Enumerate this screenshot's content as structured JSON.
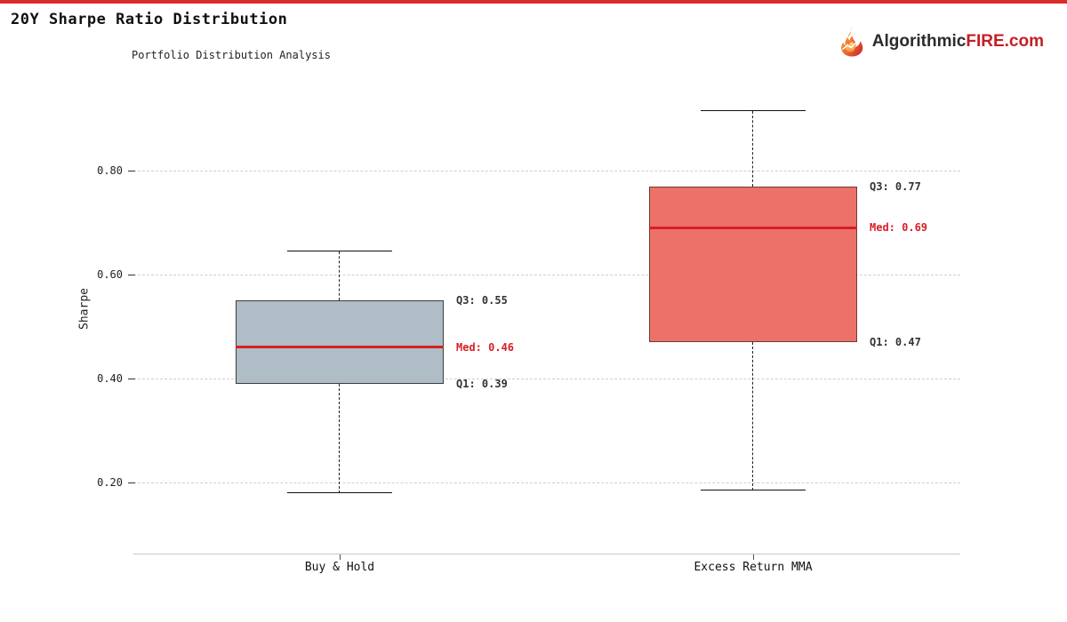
{
  "page": {
    "title": "20Y Sharpe Ratio Distribution",
    "accent_color": "#d92b2b"
  },
  "logo": {
    "name": "AlgorithmicFIRE.com",
    "text_dark": "Algorithmic",
    "text_red": "FIRE",
    "text_suffix": ".com",
    "dark_color": "#2b2b2b",
    "red_color": "#c41e25"
  },
  "chart_data": {
    "type": "box",
    "title": "Portfolio Distribution Analysis",
    "ylabel": "Sharpe",
    "xlabel": "",
    "grid": "horizontal dashed",
    "legend": "none",
    "ylim": [
      0.06,
      0.97
    ],
    "yticks": [
      0.8,
      0.6,
      0.4,
      0.2
    ],
    "ytick_labels": [
      "0.80",
      "0.60",
      "0.40",
      "0.20"
    ],
    "median_color": "#d81f26",
    "categories": [
      "Buy & Hold",
      "Excess Return MMA"
    ],
    "series": [
      {
        "name": "Buy & Hold",
        "whisker_low": 0.18,
        "q1": 0.39,
        "median": 0.46,
        "q3": 0.55,
        "whisker_high": 0.645,
        "box_color": "#aebdc6",
        "edge_color": "#3d3d3d",
        "labels": {
          "q3": "Q3: 0.55",
          "med": "Med: 0.46",
          "q1": "Q1: 0.39"
        }
      },
      {
        "name": "Excess Return MMA",
        "whisker_low": 0.185,
        "q1": 0.47,
        "median": 0.69,
        "q3": 0.77,
        "whisker_high": 0.915,
        "box_color": "#ec7168",
        "edge_color": "#6e3b34",
        "labels": {
          "q3": "Q3: 0.77",
          "med": "Med: 0.69",
          "q1": "Q1: 0.47"
        }
      }
    ]
  }
}
